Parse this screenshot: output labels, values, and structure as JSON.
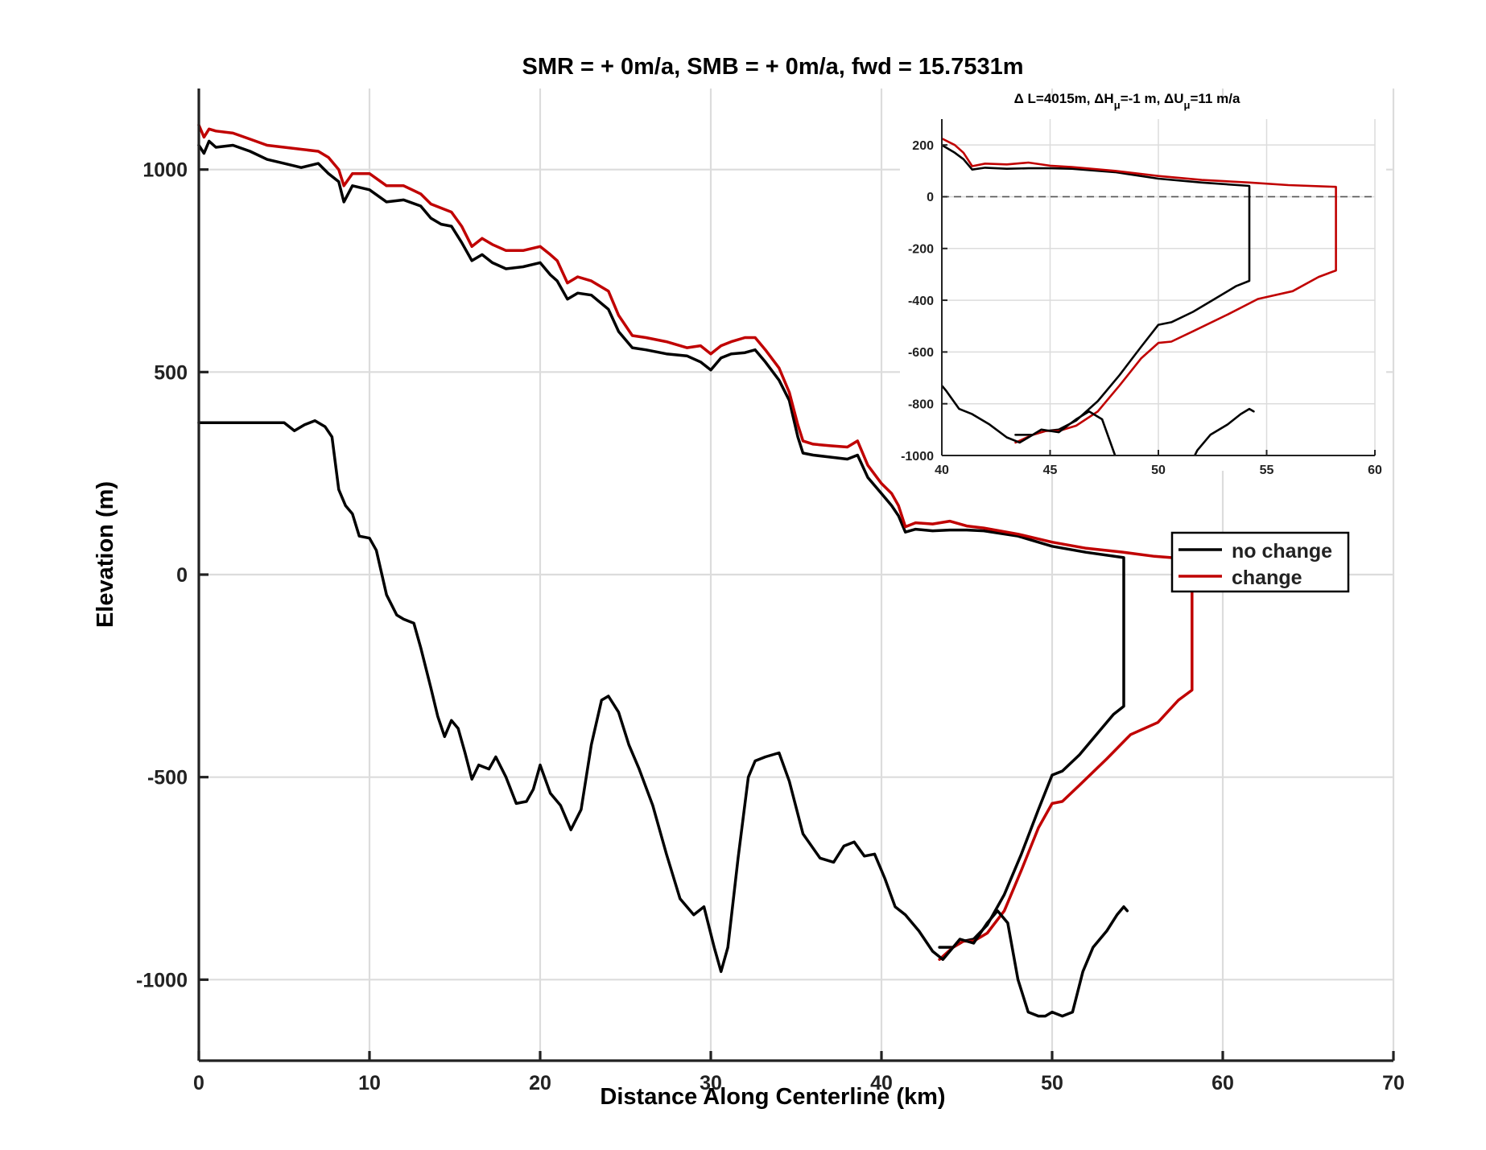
{
  "chart_data": [
    {
      "type": "line",
      "title": "SMR = + 0m/a, SMB = + 0m/a, fwd = 15.7531m",
      "xlabel": "Distance Along Centerline (km)",
      "ylabel": "Elevation (m)",
      "xlim": [
        0,
        70
      ],
      "ylim": [
        -1200,
        1200
      ],
      "xticks": [
        0,
        10,
        20,
        30,
        40,
        50,
        60,
        70
      ],
      "yticks": [
        -1000,
        -500,
        0,
        500,
        1000
      ],
      "xtick_labels": [
        "0",
        "10",
        "20",
        "30",
        "40",
        "50",
        "60",
        "70"
      ],
      "ytick_labels": [
        "-1000",
        "-500",
        "0",
        "500",
        "1000"
      ],
      "grid": true,
      "legend_position": "right",
      "legend": [
        "no change",
        "change"
      ],
      "colors": {
        "no_change": "#000000",
        "change": "#c00000"
      },
      "series": [
        {
          "name": "no change",
          "role": "ice surface and base",
          "color": "#000000",
          "points": [
            [
              0,
              1060
            ],
            [
              0.3,
              1040
            ],
            [
              0.6,
              1070
            ],
            [
              1,
              1055
            ],
            [
              2,
              1060
            ],
            [
              3,
              1045
            ],
            [
              4,
              1025
            ],
            [
              5,
              1015
            ],
            [
              6,
              1005
            ],
            [
              7,
              1015
            ],
            [
              7.6,
              990
            ],
            [
              8.2,
              970
            ],
            [
              8.5,
              920
            ],
            [
              9,
              960
            ],
            [
              10,
              950
            ],
            [
              11,
              920
            ],
            [
              12,
              925
            ],
            [
              13,
              910
            ],
            [
              13.6,
              880
            ],
            [
              14.2,
              865
            ],
            [
              14.8,
              860
            ],
            [
              15.4,
              820
            ],
            [
              16,
              775
            ],
            [
              16.6,
              790
            ],
            [
              17.2,
              770
            ],
            [
              18,
              755
            ],
            [
              19,
              760
            ],
            [
              20,
              770
            ],
            [
              20.6,
              740
            ],
            [
              21,
              725
            ],
            [
              21.6,
              680
            ],
            [
              22.2,
              695
            ],
            [
              23,
              690
            ],
            [
              24,
              655
            ],
            [
              24.6,
              600
            ],
            [
              25.4,
              560
            ],
            [
              26.2,
              555
            ],
            [
              27.4,
              545
            ],
            [
              28.6,
              540
            ],
            [
              29.4,
              525
            ],
            [
              30,
              505
            ],
            [
              30.6,
              535
            ],
            [
              31.2,
              545
            ],
            [
              32,
              548
            ],
            [
              32.6,
              555
            ],
            [
              33.2,
              525
            ],
            [
              34,
              480
            ],
            [
              34.6,
              430
            ],
            [
              35.1,
              340
            ],
            [
              35.4,
              300
            ],
            [
              36,
              295
            ],
            [
              37,
              290
            ],
            [
              38,
              285
            ],
            [
              38.6,
              295
            ],
            [
              39.2,
              240
            ],
            [
              40,
              200
            ],
            [
              40.6,
              170
            ],
            [
              41,
              145
            ],
            [
              41.4,
              105
            ],
            [
              42,
              112
            ],
            [
              43,
              108
            ],
            [
              44,
              110
            ],
            [
              45,
              110
            ],
            [
              46,
              108
            ],
            [
              48,
              95
            ],
            [
              50,
              70
            ],
            [
              52,
              55
            ],
            [
              54.2,
              42
            ],
            [
              54.2,
              -325
            ],
            [
              53.6,
              -345
            ],
            [
              52.6,
              -395
            ],
            [
              51.6,
              -445
            ],
            [
              50.6,
              -485
            ],
            [
              50,
              -495
            ],
            [
              49.2,
              -580
            ],
            [
              48.2,
              -690
            ],
            [
              47.2,
              -790
            ],
            [
              46.2,
              -865
            ],
            [
              45.4,
              -900
            ],
            [
              44.8,
              -905
            ],
            [
              44.2,
              -920
            ],
            [
              43.4,
              -920
            ]
          ]
        },
        {
          "name": "change",
          "role": "ice surface and base",
          "color": "#c00000",
          "points": [
            [
              0,
              1110
            ],
            [
              0.3,
              1080
            ],
            [
              0.6,
              1100
            ],
            [
              1,
              1095
            ],
            [
              2,
              1090
            ],
            [
              3,
              1075
            ],
            [
              4,
              1060
            ],
            [
              5,
              1055
            ],
            [
              6,
              1050
            ],
            [
              7,
              1045
            ],
            [
              7.6,
              1030
            ],
            [
              8.2,
              1000
            ],
            [
              8.5,
              960
            ],
            [
              9,
              990
            ],
            [
              10,
              990
            ],
            [
              11,
              960
            ],
            [
              12,
              960
            ],
            [
              13,
              940
            ],
            [
              13.6,
              915
            ],
            [
              14.2,
              905
            ],
            [
              14.8,
              895
            ],
            [
              15.4,
              860
            ],
            [
              16,
              810
            ],
            [
              16.6,
              830
            ],
            [
              17.2,
              815
            ],
            [
              18,
              800
            ],
            [
              19,
              800
            ],
            [
              20,
              810
            ],
            [
              20.6,
              790
            ],
            [
              21,
              775
            ],
            [
              21.6,
              720
            ],
            [
              22.2,
              735
            ],
            [
              23,
              725
            ],
            [
              24,
              700
            ],
            [
              24.6,
              640
            ],
            [
              25.4,
              590
            ],
            [
              26.2,
              585
            ],
            [
              27.4,
              575
            ],
            [
              28.6,
              560
            ],
            [
              29.4,
              565
            ],
            [
              30,
              545
            ],
            [
              30.6,
              565
            ],
            [
              31.2,
              575
            ],
            [
              32,
              585
            ],
            [
              32.6,
              585
            ],
            [
              33.2,
              555
            ],
            [
              34,
              510
            ],
            [
              34.6,
              450
            ],
            [
              35.1,
              370
            ],
            [
              35.4,
              330
            ],
            [
              36,
              322
            ],
            [
              37,
              318
            ],
            [
              38,
              315
            ],
            [
              38.6,
              330
            ],
            [
              39.2,
              270
            ],
            [
              40,
              225
            ],
            [
              40.6,
              200
            ],
            [
              41,
              170
            ],
            [
              41.4,
              118
            ],
            [
              42,
              128
            ],
            [
              43,
              125
            ],
            [
              44,
              132
            ],
            [
              45,
              120
            ],
            [
              46,
              115
            ],
            [
              48,
              100
            ],
            [
              50,
              80
            ],
            [
              52,
              65
            ],
            [
              54.2,
              55
            ],
            [
              56,
              45
            ],
            [
              58.2,
              38
            ],
            [
              58.2,
              -285
            ],
            [
              57.4,
              -310
            ],
            [
              56.2,
              -365
            ],
            [
              54.6,
              -395
            ],
            [
              53.2,
              -455
            ],
            [
              51.6,
              -520
            ],
            [
              50.6,
              -560
            ],
            [
              50,
              -565
            ],
            [
              49.2,
              -625
            ],
            [
              48.2,
              -730
            ],
            [
              47.2,
              -830
            ],
            [
              46.2,
              -885
            ],
            [
              45.4,
              -905
            ],
            [
              44.8,
              -905
            ],
            [
              44.2,
              -920
            ],
            [
              43.4,
              -950
            ]
          ]
        },
        {
          "role": "bed topography",
          "color": "#000000",
          "points": [
            [
              0,
              375
            ],
            [
              5,
              375
            ],
            [
              5.6,
              355
            ],
            [
              6.2,
              370
            ],
            [
              6.8,
              380
            ],
            [
              7.4,
              365
            ],
            [
              7.8,
              340
            ],
            [
              8.2,
              210
            ],
            [
              8.6,
              170
            ],
            [
              9,
              150
            ],
            [
              9.4,
              95
            ],
            [
              10,
              90
            ],
            [
              10.4,
              60
            ],
            [
              11,
              -50
            ],
            [
              11.6,
              -100
            ],
            [
              12,
              -110
            ],
            [
              12.6,
              -120
            ],
            [
              13,
              -180
            ],
            [
              13.6,
              -280
            ],
            [
              14,
              -350
            ],
            [
              14.4,
              -400
            ],
            [
              14.8,
              -360
            ],
            [
              15.2,
              -380
            ],
            [
              15.6,
              -440
            ],
            [
              16,
              -505
            ],
            [
              16.4,
              -470
            ],
            [
              17,
              -480
            ],
            [
              17.4,
              -450
            ],
            [
              18,
              -500
            ],
            [
              18.6,
              -565
            ],
            [
              19.2,
              -560
            ],
            [
              19.6,
              -530
            ],
            [
              20,
              -470
            ],
            [
              20.6,
              -540
            ],
            [
              21.2,
              -570
            ],
            [
              21.8,
              -630
            ],
            [
              22.4,
              -580
            ],
            [
              23,
              -420
            ],
            [
              23.6,
              -310
            ],
            [
              24,
              -300
            ],
            [
              24.6,
              -340
            ],
            [
              25.2,
              -420
            ],
            [
              25.8,
              -480
            ],
            [
              26.6,
              -570
            ],
            [
              27.4,
              -690
            ],
            [
              28.2,
              -800
            ],
            [
              29,
              -840
            ],
            [
              29.6,
              -820
            ],
            [
              30.2,
              -920
            ],
            [
              30.6,
              -980
            ],
            [
              31,
              -920
            ],
            [
              31.6,
              -700
            ],
            [
              32.2,
              -500
            ],
            [
              32.6,
              -460
            ],
            [
              33.2,
              -450
            ],
            [
              34,
              -440
            ],
            [
              34.6,
              -510
            ],
            [
              35.4,
              -640
            ],
            [
              36.4,
              -700
            ],
            [
              37.2,
              -710
            ],
            [
              37.8,
              -670
            ],
            [
              38.4,
              -660
            ],
            [
              39,
              -695
            ],
            [
              39.6,
              -690
            ],
            [
              40.2,
              -750
            ],
            [
              40.8,
              -820
            ],
            [
              41.4,
              -840
            ],
            [
              42.2,
              -880
            ],
            [
              43,
              -930
            ],
            [
              43.6,
              -950
            ],
            [
              44,
              -930
            ],
            [
              44.6,
              -900
            ],
            [
              45.4,
              -910
            ],
            [
              46.2,
              -860
            ],
            [
              46.8,
              -830
            ],
            [
              47.4,
              -860
            ],
            [
              48,
              -1000
            ],
            [
              48.6,
              -1080
            ],
            [
              49.2,
              -1090
            ],
            [
              49.6,
              -1090
            ],
            [
              50,
              -1080
            ],
            [
              50.6,
              -1090
            ],
            [
              51.2,
              -1080
            ],
            [
              51.8,
              -980
            ],
            [
              52.4,
              -920
            ],
            [
              53.2,
              -880
            ],
            [
              53.8,
              -840
            ],
            [
              54.2,
              -820
            ],
            [
              54.4,
              -830
            ]
          ]
        }
      ]
    },
    {
      "type": "line",
      "title": "Δ L=4015m, ΔHμ=-1 m, ΔUμ=11 m/a",
      "title_parts": {
        "a": "Δ L=4015m, ΔH",
        "sub1": "μ",
        "b": "=-1 m, ΔU",
        "sub2": "μ",
        "c": "=11 m/a"
      },
      "xlim": [
        40,
        60
      ],
      "ylim": [
        -1000,
        300
      ],
      "xticks": [
        40,
        45,
        50,
        55,
        60
      ],
      "yticks": [
        -1000,
        -800,
        -600,
        -400,
        -200,
        0,
        200
      ],
      "xtick_labels": [
        "40",
        "45",
        "50",
        "55",
        "60"
      ],
      "ytick_labels": [
        "-1000",
        "-800",
        "-600",
        "-400",
        "-200",
        "0",
        "200"
      ],
      "grid": true,
      "reference_line": {
        "y": 0,
        "style": "dashed"
      }
    }
  ]
}
